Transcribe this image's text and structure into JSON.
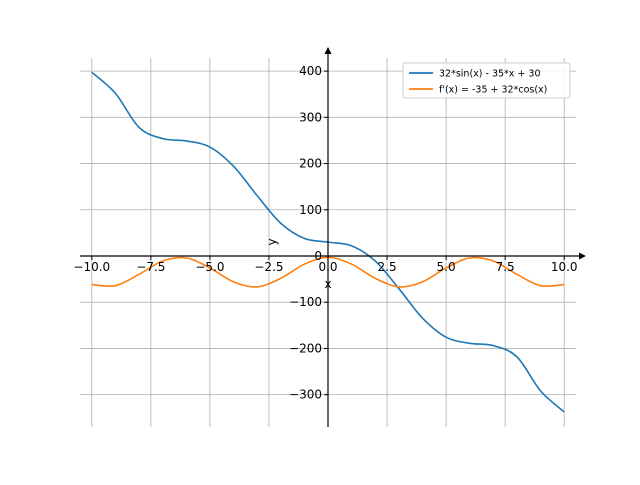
{
  "chart_data": {
    "type": "line",
    "xlabel": "x",
    "ylabel": "y",
    "xlim": [
      -10.5,
      10.5
    ],
    "ylim": [
      -370,
      450
    ],
    "xticks": [
      -10,
      -7.5,
      -5,
      -2.5,
      0,
      2.5,
      5,
      7.5,
      10
    ],
    "xtick_labels": [
      "−10.0",
      "−7.5",
      "−5.0",
      "−2.5",
      "0.0",
      "2.5",
      "5.0",
      "7.5",
      "10.0"
    ],
    "yticks": [
      -300,
      -200,
      -100,
      0,
      100,
      200,
      300,
      400
    ],
    "ytick_labels": [
      "−300",
      "−200",
      "−100",
      "0",
      "100",
      "200",
      "300",
      "400"
    ],
    "grid": true,
    "legend_position": "top-right",
    "series": [
      {
        "name": "32*sin(x) - 35*x + 30",
        "color": "#1f77b4",
        "x": [
          -10,
          -9,
          -8,
          -7,
          -6,
          -5,
          -4,
          -3,
          -2,
          -1,
          0,
          1,
          2,
          3,
          4,
          5,
          6,
          7,
          8,
          9,
          10
        ],
        "y": [
          397.4,
          351.8,
          278.3,
          254.0,
          248.9,
          235.7,
          194.2,
          130.5,
          70.9,
          38.1,
          30.0,
          21.9,
          -10.9,
          -70.5,
          -134.2,
          -175.7,
          -188.9,
          -194.0,
          -218.3,
          -291.8,
          -337.4
        ]
      },
      {
        "name": "f'(x) = -35 + 32*cos(x)",
        "color": "#ff7f0e",
        "x": [
          -10,
          -9,
          -8,
          -7,
          -6,
          -5,
          -4,
          -3,
          -2,
          -1,
          0,
          1,
          2,
          3,
          4,
          5,
          6,
          7,
          8,
          9,
          10
        ],
        "y": [
          -61.8,
          -64.2,
          -39.7,
          -10.9,
          -4.3,
          -25.9,
          -55.9,
          -66.7,
          -48.3,
          -17.7,
          -3.0,
          -17.7,
          -48.3,
          -66.7,
          -55.9,
          -25.9,
          -4.3,
          -10.9,
          -39.7,
          -64.2,
          -61.8
        ]
      }
    ]
  }
}
